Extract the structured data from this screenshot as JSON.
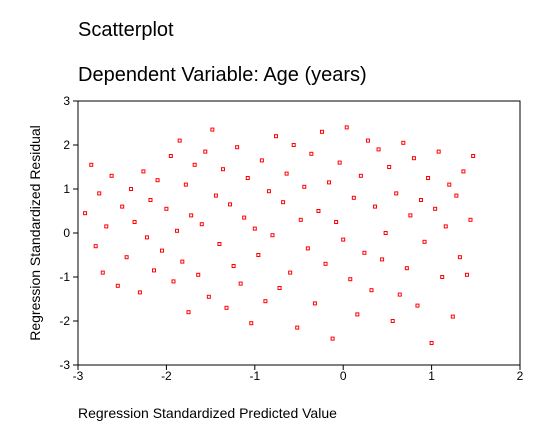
{
  "chart_data": {
    "type": "scatter",
    "title": "Scatterplot",
    "subtitle": "Dependent Variable: Age (years)",
    "xlabel": "Regression Standardized Predicted Value",
    "ylabel": "Regression Standardized Residual",
    "xlim": [
      -3,
      2
    ],
    "ylim": [
      -3,
      3
    ],
    "xticks": [
      -3,
      -2,
      -1,
      0,
      1,
      2
    ],
    "yticks": [
      3,
      2,
      1,
      0,
      -1,
      -2,
      -3
    ],
    "xtick_labels": [
      "-3",
      "-2",
      "-1",
      "0",
      "1",
      "2"
    ],
    "ytick_labels": [
      "3",
      "2",
      "1",
      "0",
      "-1",
      "-2",
      "-3"
    ],
    "grid": false,
    "marker_color": "#ff0000",
    "series": [
      {
        "x": [
          -2.92,
          -2.85,
          -2.8,
          -2.76,
          -2.72,
          -2.68,
          -2.62,
          -2.55,
          -2.5,
          -2.45,
          -2.4,
          -2.36,
          -2.3,
          -2.26,
          -2.22,
          -2.18,
          -2.14,
          -2.1,
          -2.05,
          -2.0,
          -1.95,
          -1.92,
          -1.88,
          -1.85,
          -1.82,
          -1.78,
          -1.75,
          -1.72,
          -1.68,
          -1.64,
          -1.6,
          -1.56,
          -1.52,
          -1.48,
          -1.44,
          -1.4,
          -1.36,
          -1.32,
          -1.28,
          -1.24,
          -1.2,
          -1.16,
          -1.12,
          -1.08,
          -1.04,
          -1.0,
          -0.96,
          -0.92,
          -0.88,
          -0.84,
          -0.8,
          -0.76,
          -0.72,
          -0.68,
          -0.64,
          -0.6,
          -0.56,
          -0.52,
          -0.48,
          -0.44,
          -0.4,
          -0.36,
          -0.32,
          -0.28,
          -0.24,
          -0.2,
          -0.16,
          -0.12,
          -0.08,
          -0.04,
          0.0,
          0.04,
          0.08,
          0.12,
          0.16,
          0.2,
          0.24,
          0.28,
          0.32,
          0.36,
          0.4,
          0.44,
          0.48,
          0.52,
          0.56,
          0.6,
          0.64,
          0.68,
          0.72,
          0.76,
          0.8,
          0.84,
          0.88,
          0.92,
          0.96,
          1.0,
          1.04,
          1.08,
          1.12,
          1.16,
          1.2,
          1.24,
          1.28,
          1.32,
          1.36,
          1.4,
          1.44,
          1.47
        ],
        "y": [
          0.45,
          1.55,
          -0.3,
          0.9,
          -0.9,
          0.15,
          1.3,
          -1.2,
          0.6,
          -0.55,
          1.0,
          0.25,
          -1.35,
          1.4,
          -0.1,
          0.75,
          -0.85,
          1.2,
          -0.4,
          0.55,
          1.75,
          -1.1,
          0.05,
          2.1,
          -0.65,
          1.1,
          -1.8,
          0.4,
          1.55,
          -0.95,
          0.2,
          1.85,
          -1.45,
          2.35,
          0.85,
          -0.25,
          1.45,
          -1.7,
          0.65,
          -0.75,
          1.95,
          -1.15,
          0.35,
          1.25,
          -2.05,
          0.1,
          -0.5,
          1.65,
          -1.55,
          0.95,
          -0.05,
          2.2,
          -1.25,
          0.7,
          1.35,
          -0.9,
          2.0,
          -2.15,
          0.3,
          1.05,
          -0.35,
          1.8,
          -1.6,
          0.5,
          2.3,
          -0.7,
          1.15,
          -2.4,
          0.25,
          1.6,
          -0.15,
          2.4,
          -1.05,
          0.8,
          -1.85,
          1.3,
          -0.45,
          2.1,
          -1.3,
          0.6,
          1.9,
          -0.6,
          0.0,
          1.5,
          -2.0,
          0.9,
          -1.4,
          2.05,
          -0.8,
          0.4,
          1.7,
          -1.65,
          0.75,
          -0.2,
          1.25,
          -2.5,
          0.55,
          1.85,
          -1.0,
          0.15,
          1.1,
          -1.9,
          0.85,
          -0.55,
          1.4,
          -0.95,
          0.3,
          1.75
        ]
      }
    ]
  }
}
